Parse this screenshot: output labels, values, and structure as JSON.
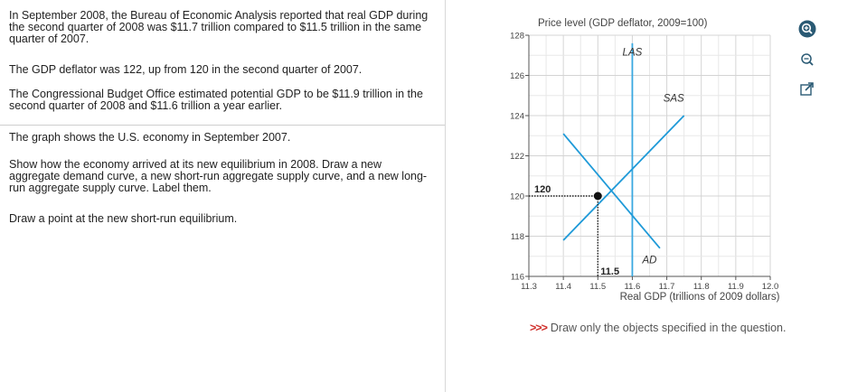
{
  "question": {
    "paragraphs": [
      "In September 2008, the Bureau of Economic Analysis reported that real GDP during the second quarter of 2008 was $11.7 trillion compared to $11.5 trillion in the same quarter of 2007.",
      "The GDP deflator was 122, up from 120 in the second quarter of 2007.",
      "The Congressional Budget Office estimated potential GDP to be $11.9 trillion in the second quarter of 2008 and $11.6 trillion a year earlier.",
      "The graph shows the U.S. economy in September 2007.",
      "Show how the economy arrived at its new equilibrium in 2008. Draw a new aggregate demand curve, a new short-run aggregate supply curve, and a new long-run aggregate supply curve. Label them.",
      "Draw a point at the new short-run equilibrium."
    ]
  },
  "instruction": {
    "arrows": ">>>",
    "text": "Draw only the objects specified in the question."
  },
  "tools": {
    "zoom_in": "zoom-in-icon",
    "zoom_out": "zoom-out-icon",
    "popout": "popout-icon"
  },
  "chart_data": {
    "type": "line",
    "ylabel": "Price level (GDP deflator, 2009=100)",
    "xlabel": "Real GDP (trillions of 2009 dollars)",
    "xlim": [
      11.3,
      12.0
    ],
    "ylim": [
      116,
      128
    ],
    "x_ticks": [
      "11.3",
      "11.4",
      "11.5",
      "11.6",
      "11.7",
      "11.8",
      "11.9",
      "12.0"
    ],
    "y_ticks": [
      "116",
      "118",
      "120",
      "122",
      "124",
      "126",
      "128"
    ],
    "grid": true,
    "series": [
      {
        "name": "LAS",
        "color": "#3aa8e0",
        "points": [
          [
            11.6,
            116
          ],
          [
            11.6,
            127.6
          ]
        ]
      },
      {
        "name": "SAS",
        "color": "#1f9ad8",
        "points": [
          [
            11.4,
            117.8
          ],
          [
            11.75,
            124
          ]
        ]
      },
      {
        "name": "AD",
        "color": "#1f9ad8",
        "points": [
          [
            11.4,
            123.1
          ],
          [
            11.68,
            117.4
          ]
        ]
      }
    ],
    "equilibrium": {
      "x": 11.5,
      "y": 120
    },
    "annotations": {
      "price_label": "120",
      "gdp_label": "11.5"
    }
  }
}
